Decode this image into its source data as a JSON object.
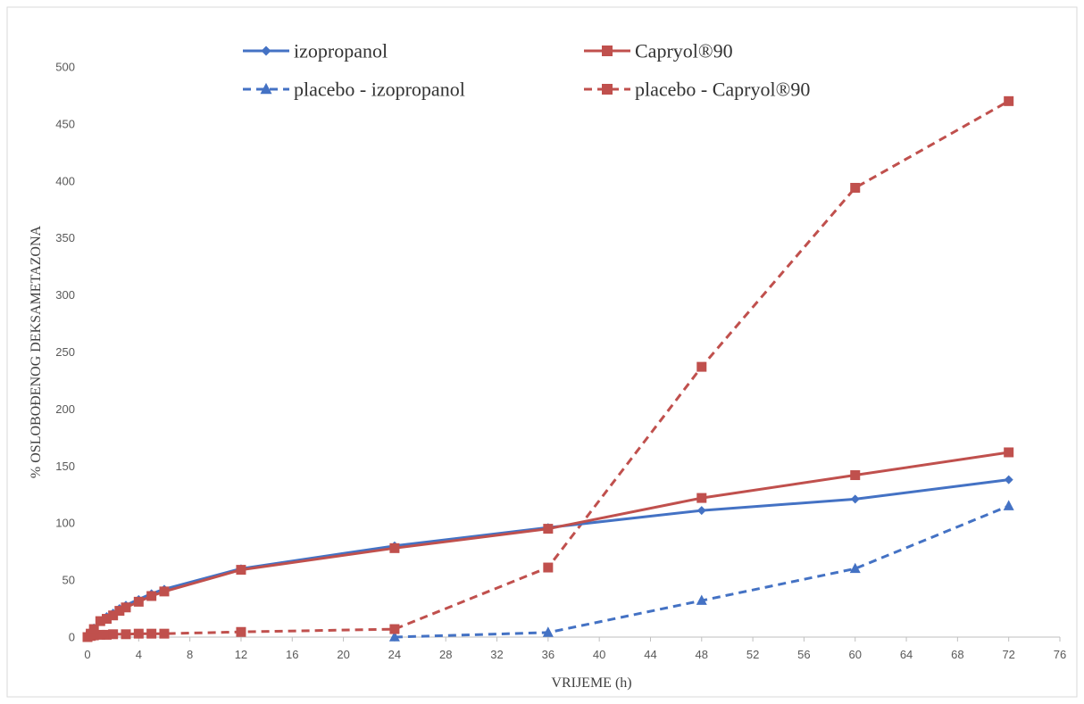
{
  "chart_data": {
    "type": "line",
    "title": "",
    "xlabel": "VRIJEME (h)",
    "ylabel": "% OSLOBOĐENOG DEKSAMETAZONA",
    "xlim": [
      0,
      76
    ],
    "ylim": [
      0,
      500
    ],
    "x_ticks": [
      0,
      4,
      8,
      12,
      16,
      20,
      24,
      28,
      32,
      36,
      40,
      44,
      48,
      52,
      56,
      60,
      64,
      68,
      72,
      76
    ],
    "y_ticks": [
      0,
      50,
      100,
      150,
      200,
      250,
      300,
      350,
      400,
      450,
      500
    ],
    "grid": false,
    "legend_position": "top",
    "series": [
      {
        "name": "izopropanol",
        "color": "#4472c4",
        "dash": "solid",
        "marker": "diamond",
        "x": [
          0,
          0.25,
          0.5,
          1,
          1.5,
          2,
          2.5,
          3,
          4,
          5,
          6,
          12,
          24,
          36,
          48,
          60,
          72
        ],
        "y": [
          0,
          4,
          8,
          14,
          18,
          21,
          25,
          28,
          33,
          38,
          42,
          60,
          80,
          96,
          111,
          121,
          138
        ]
      },
      {
        "name": "Capryol®90",
        "color": "#c0504d",
        "dash": "solid",
        "marker": "square",
        "x": [
          0,
          0.25,
          0.5,
          1,
          1.5,
          2,
          2.5,
          3,
          4,
          5,
          6,
          12,
          24,
          36,
          48,
          60,
          72
        ],
        "y": [
          0,
          3,
          7,
          14,
          16,
          19,
          23,
          26,
          31,
          36,
          40,
          59,
          78,
          95,
          122,
          142,
          162
        ]
      },
      {
        "name": "placebo - izopropanol",
        "color": "#4472c4",
        "dash": "dashed",
        "marker": "triangle",
        "x": [
          24,
          36,
          48,
          60,
          72
        ],
        "y": [
          0,
          4,
          32,
          60,
          115
        ]
      },
      {
        "name": "placebo - Capryol®90",
        "color": "#c0504d",
        "dash": "dashed",
        "marker": "square",
        "x": [
          0,
          0.25,
          0.5,
          1,
          1.5,
          2,
          3,
          4,
          5,
          6,
          12,
          24,
          36,
          48,
          60,
          72
        ],
        "y": [
          0,
          1,
          1.5,
          2,
          2,
          2.5,
          2.5,
          3,
          3,
          3,
          4.5,
          7,
          61,
          237,
          394,
          470
        ]
      }
    ]
  }
}
